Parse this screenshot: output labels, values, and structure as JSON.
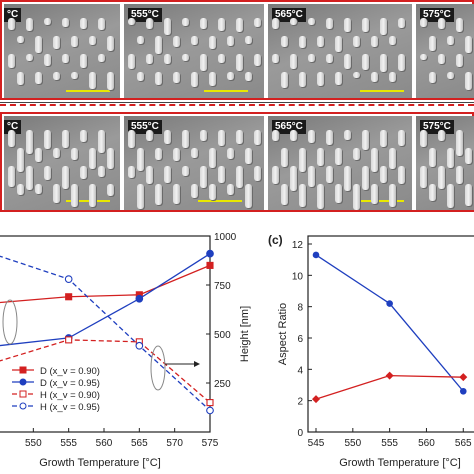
{
  "sem": {
    "top_row": [
      "°C",
      "555°C",
      "565°C",
      "575°C"
    ],
    "bottom_row": [
      "°C",
      "555°C",
      "565°C",
      "575°C"
    ]
  },
  "panel_c_label": "(c)",
  "chart_data": [
    {
      "type": "line",
      "xlabel": "Growth Temperature [°C]",
      "ylabel": "",
      "ylabel_right": "Height [nm]",
      "x_ticks": [
        "550",
        "555",
        "560",
        "565",
        "570",
        "575"
      ],
      "y_right_ticks": [
        "250",
        "500",
        "750",
        "1000"
      ],
      "xlim": [
        545,
        575
      ],
      "ylim_right": [
        0,
        1000
      ],
      "series": [
        {
          "name": "D (x_v = 0.90)",
          "axis": "left",
          "style": "solid-square-red",
          "x": [
            545,
            555,
            565,
            575
          ],
          "values": [
            660,
            690,
            700,
            850
          ]
        },
        {
          "name": "D (x_v = 0.95)",
          "axis": "left",
          "style": "solid-circle-blue",
          "x": [
            545,
            555,
            565,
            575
          ],
          "values": [
            440,
            480,
            680,
            910
          ]
        },
        {
          "name": "H (x_v = 0.90)",
          "axis": "right",
          "style": "dashed-open-square-red",
          "x": [
            545,
            555,
            565,
            575
          ],
          "values": [
            360,
            470,
            460,
            150
          ]
        },
        {
          "name": "H (x_v = 0.95)",
          "axis": "right",
          "style": "dashed-open-circle-blue",
          "x": [
            545,
            555,
            565,
            575
          ],
          "values": [
            900,
            780,
            440,
            110
          ]
        }
      ],
      "legend": [
        "D (x_v = 0.90)",
        "D (x_v = 0.95)",
        "H (x_v = 0.90)",
        "H (x_v = 0.95)"
      ]
    },
    {
      "type": "line",
      "xlabel": "Growth Temperature [°C]",
      "ylabel": "Aspect Ratio",
      "x_ticks": [
        "545",
        "550",
        "555",
        "560",
        "565"
      ],
      "y_ticks": [
        "0",
        "2",
        "4",
        "6",
        "8",
        "10",
        "12"
      ],
      "xlim": [
        545,
        567
      ],
      "ylim": [
        0,
        12
      ],
      "series": [
        {
          "style": "blue-circle",
          "x": [
            545,
            555,
            565
          ],
          "values": [
            11.3,
            8.2,
            2.6
          ]
        },
        {
          "style": "red-diamond",
          "x": [
            545,
            555,
            565
          ],
          "values": [
            2.1,
            3.6,
            3.5
          ]
        }
      ]
    }
  ],
  "colors": {
    "red": "#d32020",
    "blue": "#1f3fbf",
    "frame": "#d32020",
    "scale_bar": "#e8e800"
  }
}
